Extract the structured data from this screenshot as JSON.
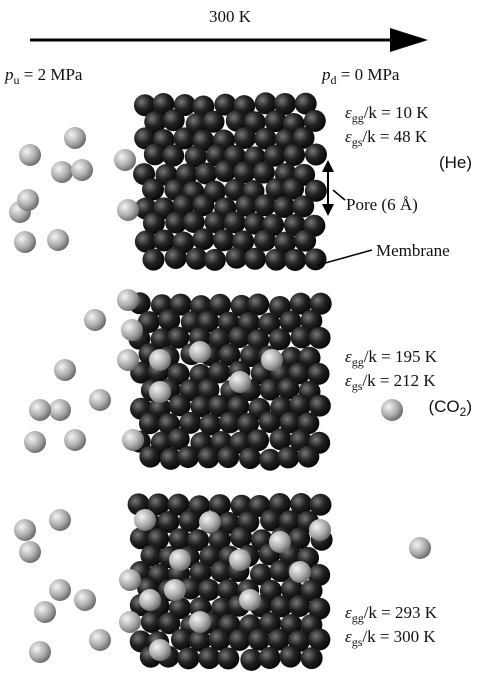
{
  "header": {
    "temperature": "300 K",
    "upstream": {
      "symbol": "p",
      "sub": "u",
      "rest": " = 2 MPa"
    },
    "downstream": {
      "symbol": "p",
      "sub": "d",
      "rest": " = 0 MPa"
    }
  },
  "panels": [
    {
      "energies": [
        {
          "symbol": "ε",
          "sub": "gg",
          "rest": "/k = 10 K"
        },
        {
          "symbol": "ε",
          "sub": "gs",
          "rest": "/k = 48 K"
        }
      ],
      "gas": {
        "text": "(He)"
      }
    },
    {
      "energies": [
        {
          "symbol": "ε",
          "sub": "gg",
          "rest": "/k = 195 K"
        },
        {
          "symbol": "ε",
          "sub": "gs",
          "rest": "/k = 212 K"
        }
      ],
      "gas": {
        "text": "(CO",
        "sub": "2",
        "end": ")"
      }
    },
    {
      "energies": [
        {
          "symbol": "ε",
          "sub": "gg",
          "rest": "/k = 293 K"
        },
        {
          "symbol": "ε",
          "sub": "gs",
          "rest": "/k = 300 K"
        }
      ]
    }
  ],
  "labels": {
    "pore": "Pore (6 Å)",
    "membrane": "Membrane"
  }
}
